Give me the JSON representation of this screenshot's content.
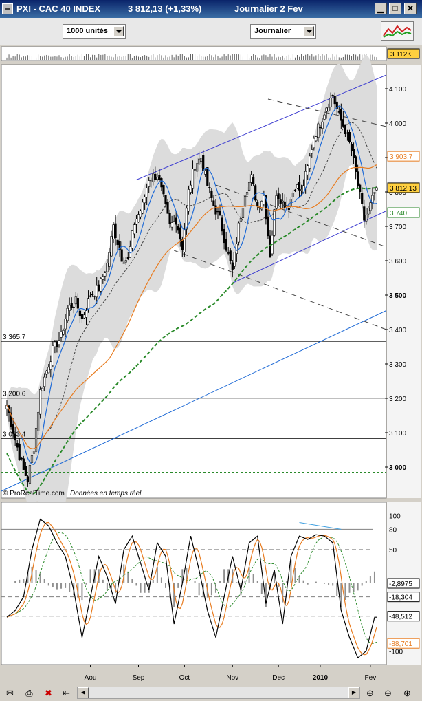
{
  "window": {
    "title_symbol": "PXI - CAC 40 INDEX",
    "title_price": "3 812,13 (+1,33%)",
    "title_period": "Journalier  2 Fev",
    "min_glyph": "▁",
    "max_glyph": "□",
    "close_glyph": "✕"
  },
  "toolbar": {
    "units_select": "1000 unités",
    "period_select": "Journalier"
  },
  "volume": {
    "last_label": "3 112K"
  },
  "price_axis": {
    "ticks": [
      {
        "v": 4100,
        "l": "4 100"
      },
      {
        "v": 4000,
        "l": "4 000"
      },
      {
        "v": 3900,
        "l": "3 900"
      },
      {
        "v": 3800,
        "l": "3 800"
      },
      {
        "v": 3700,
        "l": "3 700"
      },
      {
        "v": 3600,
        "l": "3 600"
      },
      {
        "v": 3500,
        "l": "3 500"
      },
      {
        "v": 3400,
        "l": "3 400"
      },
      {
        "v": 3300,
        "l": "3 300"
      },
      {
        "v": 3200,
        "l": "3 200"
      },
      {
        "v": 3100,
        "l": "3 100"
      },
      {
        "v": 3000,
        "l": "3 000"
      }
    ],
    "bold_ticks": [
      3500,
      3000
    ],
    "badges": [
      {
        "v": 3903.7,
        "l": "3 903,7",
        "color": "#e87c20",
        "fill": "#ffffff"
      },
      {
        "v": 3812.13,
        "l": "3 812,13",
        "color": "#000000",
        "fill": "#ffd040"
      },
      {
        "v": 3740,
        "l": "3 740",
        "color": "#2a8a2a",
        "fill": "#ffffff"
      }
    ]
  },
  "levels": [
    {
      "v": 3365.7,
      "l": "3 365,7"
    },
    {
      "v": 3200.6,
      "l": "3 200,6"
    },
    {
      "v": 3083.4,
      "l": "3 083,4"
    }
  ],
  "watermark": "© ProRealTime.com",
  "watermark_sub": "Données en temps réel",
  "osc_axis": {
    "ticks": [
      {
        "v": 100,
        "l": "100"
      },
      {
        "v": 80,
        "l": "80"
      },
      {
        "v": 50,
        "l": "50"
      },
      {
        "v": -20,
        "l": "-20"
      },
      {
        "v": -100,
        "l": "-100"
      }
    ],
    "badges": [
      {
        "v": 0,
        "l": "-2,8975",
        "color": "#000000"
      },
      {
        "v": -20,
        "l": "-18,304",
        "color": "#000000"
      },
      {
        "v": -48.5,
        "l": "-48,512",
        "color": "#000000"
      },
      {
        "v": -88.7,
        "l": "-88,701",
        "color": "#e87c20"
      }
    ]
  },
  "x_axis": [
    {
      "d": 40,
      "l": "Aou"
    },
    {
      "d": 63,
      "l": "Sep"
    },
    {
      "d": 85,
      "l": "Oct"
    },
    {
      "d": 108,
      "l": "Nov"
    },
    {
      "d": 130,
      "l": "Dec"
    },
    {
      "d": 150,
      "l": "2010",
      "bold": true
    },
    {
      "d": 174,
      "l": "Fev"
    }
  ],
  "colors": {
    "candle": "#000000",
    "ma_fast": "#1e6ad6",
    "ma_mid": "#e87c20",
    "ma_slow": "#2a8a2a",
    "band": "#dcdcdc",
    "channel": "#3c3cd0"
  },
  "chart_data": {
    "type": "candlestick",
    "title": "PXI - CAC 40 INDEX",
    "x_range": [
      0,
      177
    ],
    "ylim": [
      2910,
      4170
    ],
    "anchors": [
      [
        0,
        3180
      ],
      [
        4,
        3080
      ],
      [
        8,
        2990
      ],
      [
        10,
        2965
      ],
      [
        13,
        3060
      ],
      [
        16,
        3220
      ],
      [
        19,
        3280
      ],
      [
        22,
        3340
      ],
      [
        26,
        3380
      ],
      [
        29,
        3460
      ],
      [
        33,
        3480
      ],
      [
        36,
        3430
      ],
      [
        40,
        3500
      ],
      [
        44,
        3520
      ],
      [
        48,
        3590
      ],
      [
        51,
        3700
      ],
      [
        55,
        3610
      ],
      [
        58,
        3600
      ],
      [
        61,
        3710
      ],
      [
        65,
        3760
      ],
      [
        68,
        3840
      ],
      [
        72,
        3850
      ],
      [
        75,
        3780
      ],
      [
        78,
        3700
      ],
      [
        81,
        3720
      ],
      [
        84,
        3640
      ],
      [
        87,
        3800
      ],
      [
        90,
        3880
      ],
      [
        93,
        3900
      ],
      [
        96,
        3820
      ],
      [
        99,
        3760
      ],
      [
        102,
        3720
      ],
      [
        105,
        3640
      ],
      [
        108,
        3570
      ],
      [
        111,
        3700
      ],
      [
        114,
        3800
      ],
      [
        117,
        3840
      ],
      [
        120,
        3760
      ],
      [
        123,
        3790
      ],
      [
        126,
        3620
      ],
      [
        129,
        3800
      ],
      [
        132,
        3770
      ],
      [
        135,
        3760
      ],
      [
        138,
        3820
      ],
      [
        141,
        3800
      ],
      [
        144,
        3870
      ],
      [
        147,
        3960
      ],
      [
        150,
        4000
      ],
      [
        153,
        4050
      ],
      [
        156,
        4080
      ],
      [
        159,
        4020
      ],
      [
        162,
        3980
      ],
      [
        165,
        3920
      ],
      [
        168,
        3820
      ],
      [
        171,
        3720
      ],
      [
        174,
        3760
      ],
      [
        177,
        3812
      ]
    ],
    "last_close": 3812.13,
    "change_pct": 1.33,
    "horizontal_levels": [
      3365.7,
      3200.6,
      3083.4
    ],
    "oscillator": {
      "ylim": [
        -120,
        120
      ],
      "anchors": [
        [
          0,
          -50
        ],
        [
          4,
          -40
        ],
        [
          8,
          -20
        ],
        [
          12,
          50
        ],
        [
          16,
          95
        ],
        [
          20,
          85
        ],
        [
          24,
          60
        ],
        [
          28,
          40
        ],
        [
          32,
          -10
        ],
        [
          36,
          -80
        ],
        [
          40,
          -20
        ],
        [
          44,
          40
        ],
        [
          48,
          10
        ],
        [
          52,
          -30
        ],
        [
          56,
          50
        ],
        [
          60,
          70
        ],
        [
          64,
          30
        ],
        [
          68,
          -10
        ],
        [
          72,
          60
        ],
        [
          76,
          40
        ],
        [
          80,
          -60
        ],
        [
          84,
          0
        ],
        [
          88,
          70
        ],
        [
          92,
          20
        ],
        [
          96,
          -40
        ],
        [
          100,
          -80
        ],
        [
          104,
          -20
        ],
        [
          108,
          40
        ],
        [
          112,
          -10
        ],
        [
          116,
          60
        ],
        [
          120,
          70
        ],
        [
          124,
          -30
        ],
        [
          128,
          20
        ],
        [
          132,
          -60
        ],
        [
          136,
          40
        ],
        [
          140,
          70
        ],
        [
          144,
          65
        ],
        [
          148,
          72
        ],
        [
          152,
          70
        ],
        [
          156,
          60
        ],
        [
          160,
          -40
        ],
        [
          164,
          -80
        ],
        [
          168,
          -110
        ],
        [
          172,
          -100
        ],
        [
          176,
          -50
        ]
      ]
    }
  }
}
